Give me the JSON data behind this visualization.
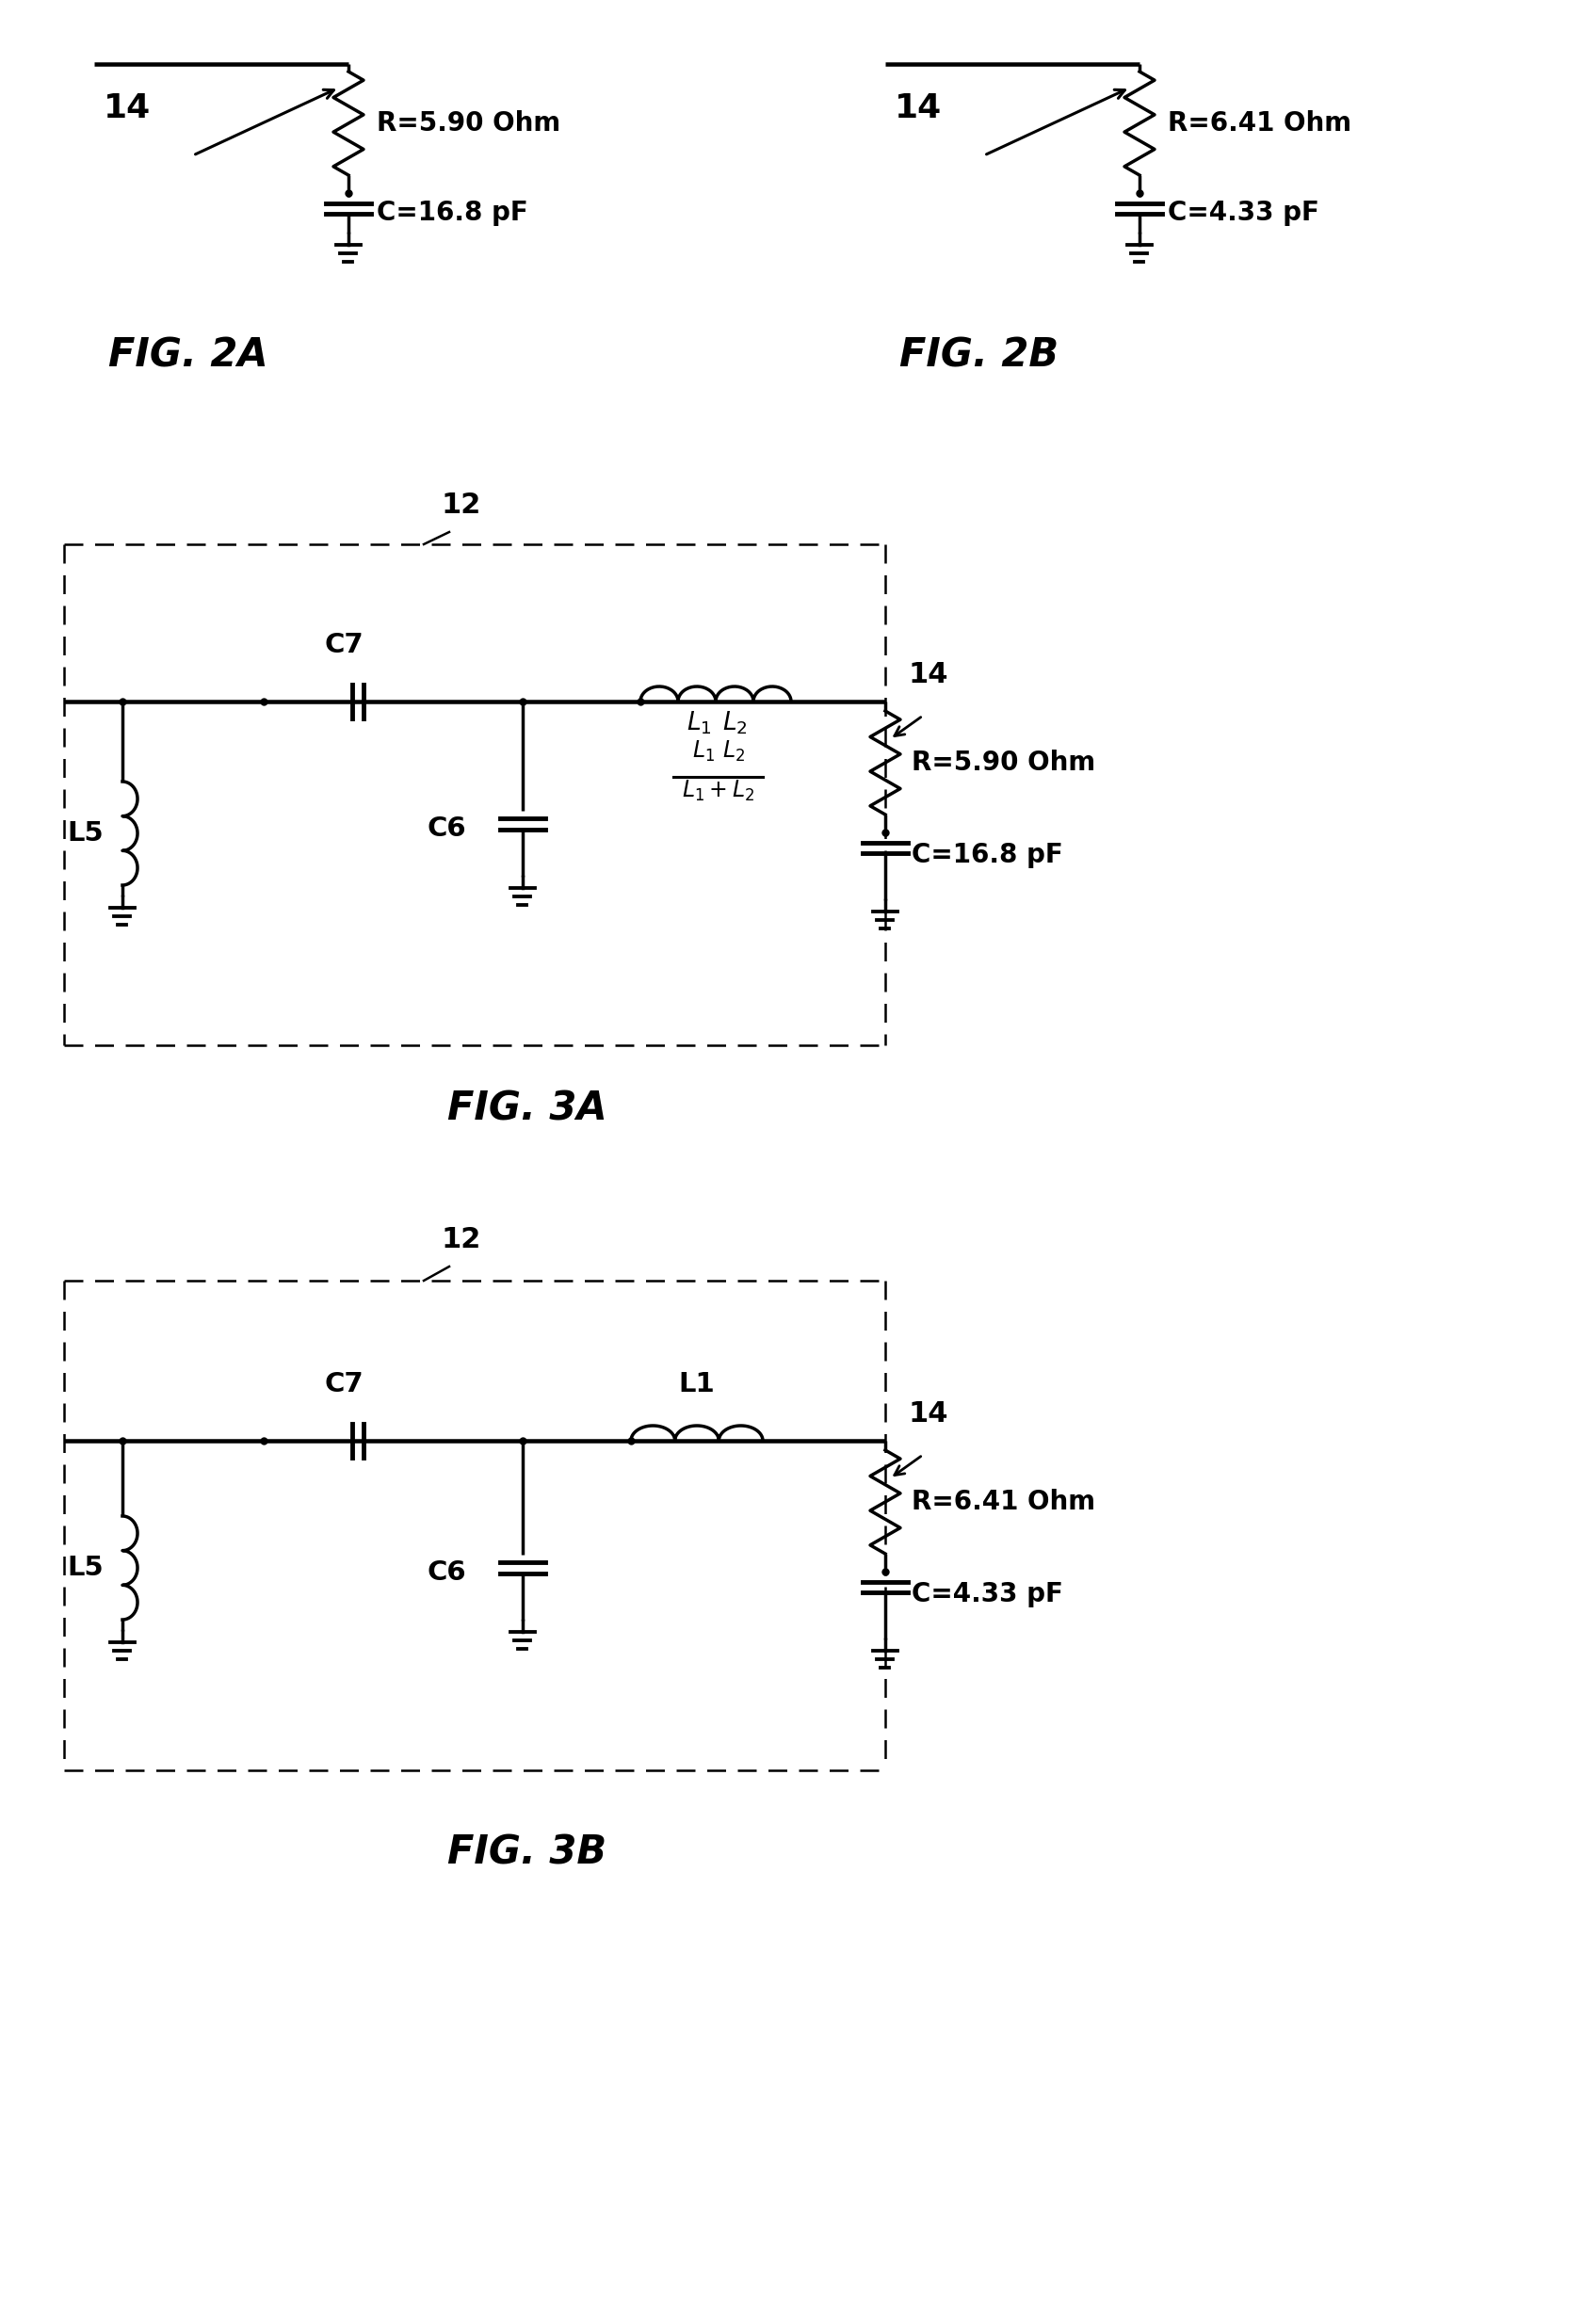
{
  "fig2a": {
    "label": "14",
    "R": "R=5.90 Ohm",
    "C": "C=16.8 pF",
    "title": "FIG. 2A"
  },
  "fig2b": {
    "label": "14",
    "R": "R=6.41 Ohm",
    "C": "C=4.33 pF",
    "title": "FIG. 2B"
  },
  "fig3a": {
    "label_12": "12",
    "label_14": "14",
    "R": "R=5.90 Ohm",
    "C": "C=16.8 pF",
    "title": "FIG. 3A"
  },
  "fig3b": {
    "label_12": "12",
    "label_14": "14",
    "R": "R=6.41 Ohm",
    "C": "C=4.33 pF",
    "title": "FIG. 3B"
  },
  "bg_color": "#ffffff",
  "line_color": "#000000",
  "lw": 2.5
}
